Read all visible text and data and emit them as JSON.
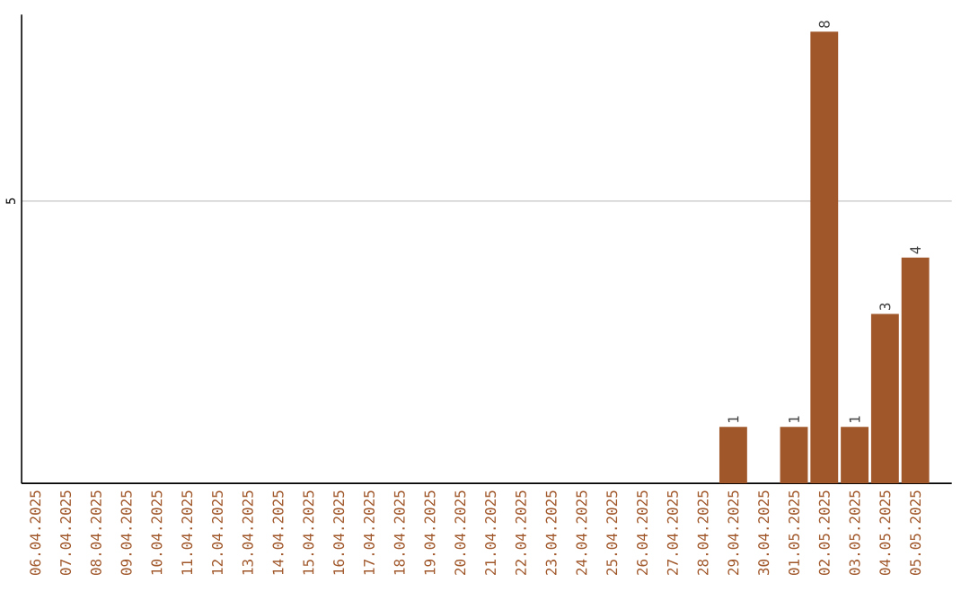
{
  "chart_data": {
    "type": "bar",
    "categories": [
      "06.04.2025",
      "07.04.2025",
      "08.04.2025",
      "09.04.2025",
      "10.04.2025",
      "11.04.2025",
      "12.04.2025",
      "13.04.2025",
      "14.04.2025",
      "15.04.2025",
      "16.04.2025",
      "17.04.2025",
      "18.04.2025",
      "19.04.2025",
      "20.04.2025",
      "21.04.2025",
      "22.04.2025",
      "23.04.2025",
      "24.04.2025",
      "25.04.2025",
      "26.04.2025",
      "27.04.2025",
      "28.04.2025",
      "29.04.2025",
      "30.04.2025",
      "01.05.2025",
      "02.05.2025",
      "03.05.2025",
      "04.05.2025",
      "05.05.2025"
    ],
    "values": [
      null,
      null,
      null,
      null,
      null,
      null,
      null,
      null,
      null,
      null,
      null,
      null,
      null,
      null,
      null,
      null,
      null,
      null,
      null,
      null,
      null,
      null,
      null,
      1,
      null,
      1,
      8,
      1,
      3,
      4
    ],
    "value_labels": [
      null,
      null,
      null,
      null,
      null,
      null,
      null,
      null,
      null,
      null,
      null,
      null,
      null,
      null,
      null,
      null,
      null,
      null,
      null,
      null,
      null,
      null,
      null,
      "1",
      null,
      "1",
      "8",
      "1",
      "3",
      "4"
    ],
    "color": "#a0572a",
    "ylim": [
      0,
      8.3
    ],
    "yticks": [
      5
    ],
    "grid": "y"
  }
}
